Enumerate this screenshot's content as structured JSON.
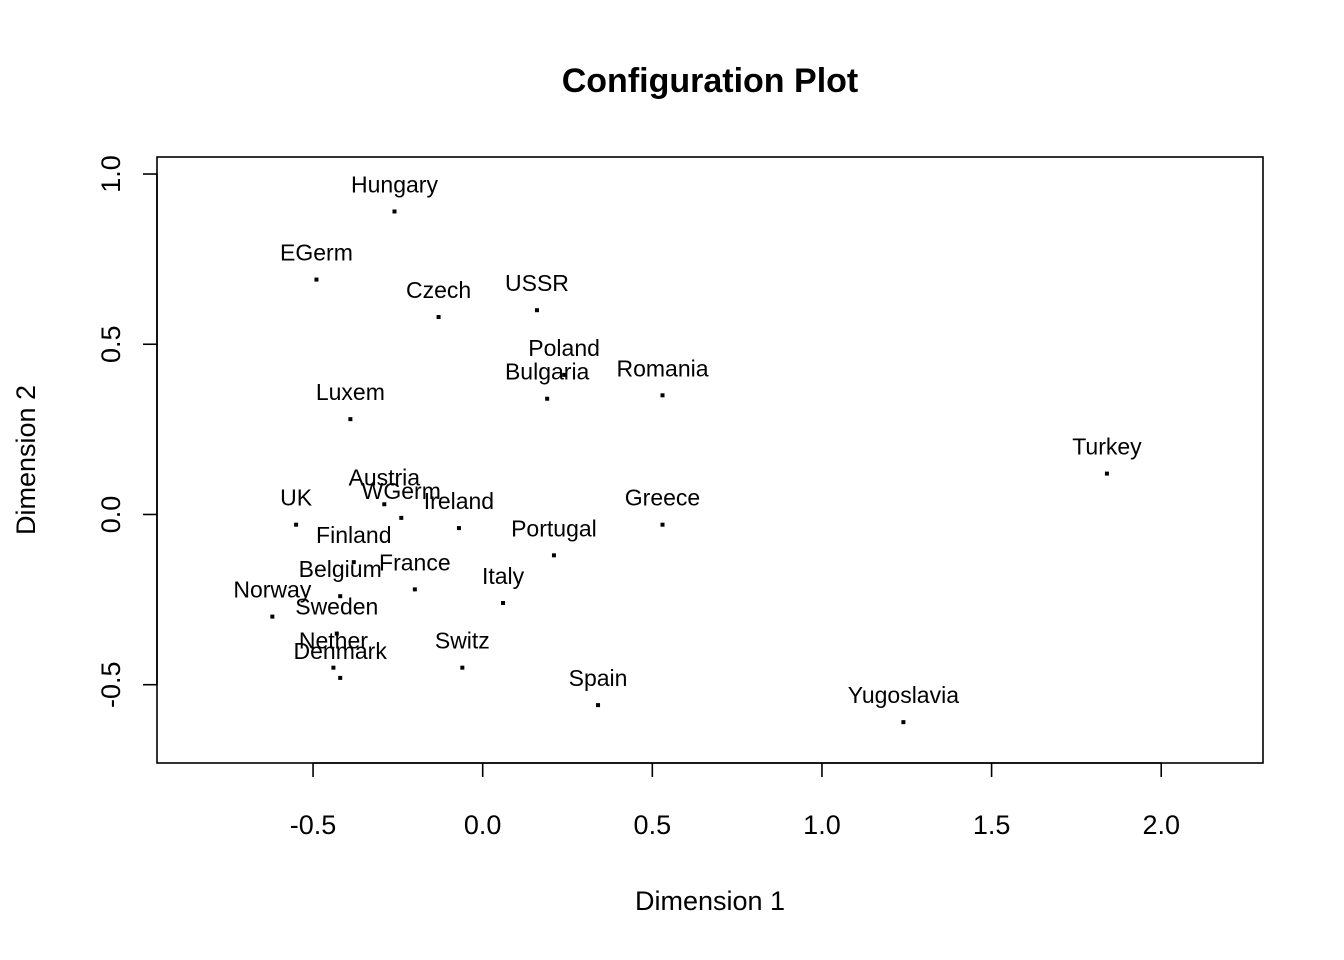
{
  "chart_data": {
    "type": "scatter",
    "title": "Configuration Plot",
    "xlabel": "Dimension 1",
    "ylabel": "Dimension 2",
    "xlim": [
      -0.96,
      2.3
    ],
    "ylim": [
      -0.73,
      1.05
    ],
    "xticks": [
      -0.5,
      0.0,
      0.5,
      1.0,
      1.5,
      2.0
    ],
    "xtick_labels": [
      "-0.5",
      "0.0",
      "0.5",
      "1.0",
      "1.5",
      "2.0"
    ],
    "yticks": [
      -0.5,
      0.0,
      0.5,
      1.0
    ],
    "ytick_labels": [
      "-0.5",
      "0.0",
      "0.5",
      "1.0"
    ],
    "grid": false,
    "legend": "none",
    "colors": {
      "points": "#000000",
      "text": "#000000",
      "frame": "#000000"
    },
    "points": [
      {
        "label": "Hungary",
        "x": -0.26,
        "y": 0.89
      },
      {
        "label": "EGerm",
        "x": -0.49,
        "y": 0.69
      },
      {
        "label": "Czech",
        "x": -0.13,
        "y": 0.58
      },
      {
        "label": "USSR",
        "x": 0.16,
        "y": 0.6
      },
      {
        "label": "Poland",
        "x": 0.24,
        "y": 0.41
      },
      {
        "label": "Bulgaria",
        "x": 0.19,
        "y": 0.34
      },
      {
        "label": "Romania",
        "x": 0.53,
        "y": 0.35
      },
      {
        "label": "Luxem",
        "x": -0.39,
        "y": 0.28
      },
      {
        "label": "Turkey",
        "x": 1.84,
        "y": 0.12
      },
      {
        "label": "Austria",
        "x": -0.29,
        "y": 0.03
      },
      {
        "label": "WGerm",
        "x": -0.24,
        "y": -0.01
      },
      {
        "label": "UK",
        "x": -0.55,
        "y": -0.03
      },
      {
        "label": "Ireland",
        "x": -0.07,
        "y": -0.04
      },
      {
        "label": "Greece",
        "x": 0.53,
        "y": -0.03
      },
      {
        "label": "Portugal",
        "x": 0.21,
        "y": -0.12
      },
      {
        "label": "Finland",
        "x": -0.38,
        "y": -0.14
      },
      {
        "label": "Belgium",
        "x": -0.42,
        "y": -0.24
      },
      {
        "label": "France",
        "x": -0.2,
        "y": -0.22
      },
      {
        "label": "Italy",
        "x": 0.06,
        "y": -0.26
      },
      {
        "label": "Norway",
        "x": -0.62,
        "y": -0.3
      },
      {
        "label": "Sweden",
        "x": -0.43,
        "y": -0.35
      },
      {
        "label": "Nether",
        "x": -0.44,
        "y": -0.45
      },
      {
        "label": "Denmark",
        "x": -0.42,
        "y": -0.48
      },
      {
        "label": "Switz",
        "x": -0.06,
        "y": -0.45
      },
      {
        "label": "Spain",
        "x": 0.34,
        "y": -0.56
      },
      {
        "label": "Yugoslavia",
        "x": 1.24,
        "y": -0.61
      }
    ]
  }
}
